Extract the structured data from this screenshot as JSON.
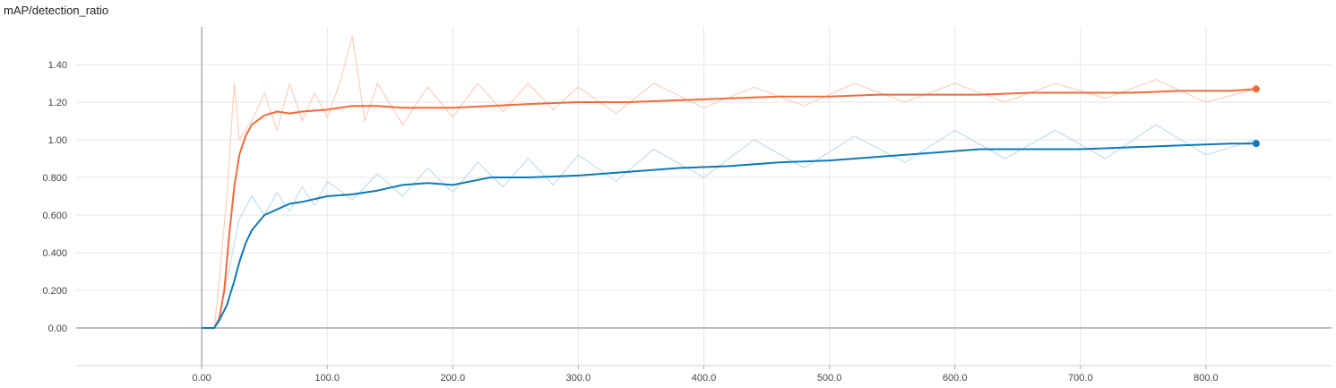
{
  "chart_title": "mAP/detection_ratio",
  "chart_data": {
    "type": "line",
    "title": "mAP/detection_ratio",
    "xlabel": "",
    "ylabel": "",
    "xlim": [
      -100,
      900
    ],
    "ylim": [
      -0.2,
      1.6
    ],
    "grid": true,
    "x_ticks": [
      "0.00",
      "100.0",
      "200.0",
      "300.0",
      "400.0",
      "500.0",
      "600.0",
      "700.0",
      "800.0"
    ],
    "x_tick_values": [
      0,
      100,
      200,
      300,
      400,
      500,
      600,
      700,
      800
    ],
    "y_ticks": [
      "0.00",
      "0.200",
      "0.400",
      "0.600",
      "0.800",
      "1.00",
      "1.20",
      "1.40"
    ],
    "y_tick_values": [
      0,
      0.2,
      0.4,
      0.6,
      0.8,
      1.0,
      1.2,
      1.4
    ],
    "series": [
      {
        "color": "#f26b3a",
        "raw_color": "#fcd2c2",
        "smoothed": {
          "x": [
            0,
            10,
            14,
            18,
            22,
            26,
            30,
            35,
            40,
            50,
            60,
            70,
            80,
            100,
            120,
            140,
            160,
            180,
            200,
            230,
            260,
            300,
            340,
            380,
            420,
            460,
            500,
            540,
            580,
            620,
            660,
            700,
            740,
            780,
            820,
            840
          ],
          "y": [
            0,
            0,
            0.05,
            0.2,
            0.5,
            0.75,
            0.92,
            1.02,
            1.08,
            1.13,
            1.15,
            1.14,
            1.15,
            1.16,
            1.18,
            1.18,
            1.17,
            1.17,
            1.17,
            1.18,
            1.19,
            1.2,
            1.2,
            1.21,
            1.22,
            1.23,
            1.23,
            1.24,
            1.24,
            1.24,
            1.25,
            1.25,
            1.25,
            1.26,
            1.26,
            1.27
          ]
        },
        "raw": {
          "x": [
            10,
            14,
            20,
            26,
            30,
            40,
            50,
            60,
            70,
            80,
            90,
            100,
            110,
            120,
            130,
            140,
            160,
            180,
            200,
            220,
            240,
            260,
            280,
            300,
            330,
            360,
            400,
            440,
            480,
            520,
            560,
            600,
            640,
            680,
            720,
            760,
            800,
            840
          ],
          "y": [
            0,
            0.25,
            0.7,
            1.3,
            1.0,
            1.1,
            1.25,
            1.05,
            1.3,
            1.1,
            1.25,
            1.12,
            1.3,
            1.55,
            1.1,
            1.3,
            1.08,
            1.28,
            1.12,
            1.3,
            1.15,
            1.3,
            1.16,
            1.28,
            1.14,
            1.3,
            1.17,
            1.28,
            1.18,
            1.3,
            1.2,
            1.3,
            1.2,
            1.3,
            1.22,
            1.32,
            1.2,
            1.27
          ]
        },
        "last": {
          "x": 840,
          "y": 1.27
        }
      },
      {
        "color": "#0f79b8",
        "raw_color": "#c6e0ef",
        "smoothed": {
          "x": [
            0,
            10,
            14,
            20,
            26,
            30,
            35,
            40,
            50,
            60,
            70,
            80,
            100,
            120,
            140,
            160,
            180,
            200,
            230,
            260,
            300,
            340,
            380,
            420,
            460,
            500,
            540,
            580,
            620,
            660,
            700,
            740,
            780,
            820,
            840
          ],
          "y": [
            0,
            0,
            0.04,
            0.12,
            0.25,
            0.35,
            0.45,
            0.52,
            0.6,
            0.63,
            0.66,
            0.67,
            0.7,
            0.71,
            0.73,
            0.76,
            0.77,
            0.76,
            0.8,
            0.8,
            0.81,
            0.83,
            0.85,
            0.86,
            0.88,
            0.89,
            0.91,
            0.93,
            0.95,
            0.95,
            0.95,
            0.96,
            0.97,
            0.98,
            0.98
          ]
        },
        "raw": {
          "x": [
            10,
            14,
            20,
            26,
            30,
            40,
            50,
            60,
            70,
            80,
            90,
            100,
            120,
            140,
            160,
            180,
            200,
            220,
            240,
            260,
            280,
            300,
            330,
            360,
            400,
            440,
            480,
            520,
            560,
            600,
            640,
            680,
            720,
            760,
            800,
            840
          ],
          "y": [
            0,
            0.05,
            0.25,
            0.45,
            0.58,
            0.7,
            0.6,
            0.72,
            0.62,
            0.75,
            0.65,
            0.78,
            0.68,
            0.82,
            0.7,
            0.85,
            0.72,
            0.88,
            0.75,
            0.9,
            0.76,
            0.92,
            0.78,
            0.95,
            0.8,
            1.0,
            0.85,
            1.02,
            0.88,
            1.05,
            0.9,
            1.05,
            0.9,
            1.08,
            0.92,
            1.0
          ]
        },
        "last": {
          "x": 840,
          "y": 0.98
        }
      }
    ]
  }
}
